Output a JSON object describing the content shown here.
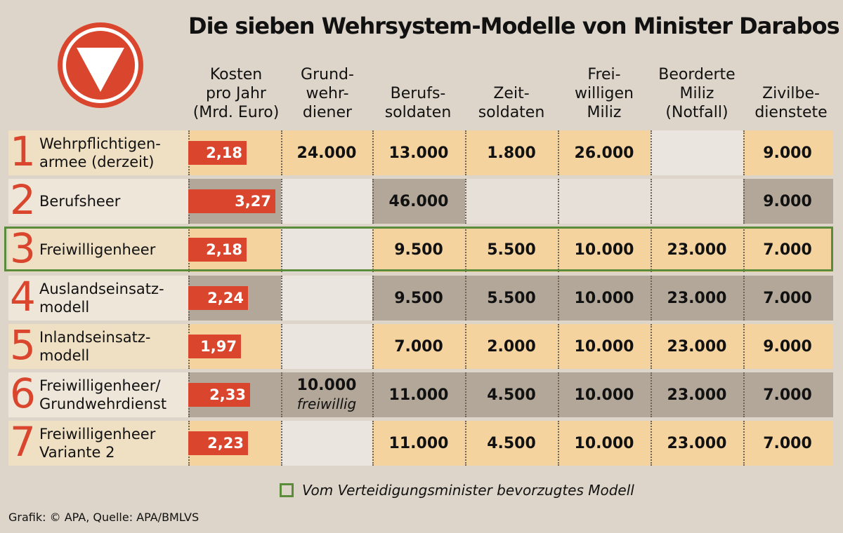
{
  "header": {
    "title": "Die sieben Wehrsystem-Modelle von Minister Darabos",
    "logo_icon": "austrian-army-triangle-logo"
  },
  "colors": {
    "accent_red": "#d9462d",
    "row_light": "#f4d39f",
    "row_dark": "#b2a799",
    "row_empty": "#eae5de",
    "highlight_green": "#5a8c3c"
  },
  "columns": [
    "Kosten\npro Jahr\n(Mrd. Euro)",
    "Grund-\nwehr-\ndiener",
    "Berufs-\nsoldaten",
    "Zeit-\nsoldaten",
    "Frei-\nwilligen\nMiliz",
    "Beorderte\nMiliz\n(Notfall)",
    "Zivilbe-\ndienstete"
  ],
  "rows": [
    {
      "number": "1",
      "name": "Wehrpflichtigen-\narmee (derzeit)",
      "cost_label": "2,18",
      "grund": "24.000",
      "grund_note": "",
      "berufs": "13.000",
      "zeit": "1.800",
      "freiwillige_miliz": "26.000",
      "beorderte_miliz": "",
      "zivil": "9.000"
    },
    {
      "number": "2",
      "name": "Berufsheer",
      "cost_label": "3,27",
      "grund": "",
      "grund_note": "",
      "berufs": "46.000",
      "zeit": "",
      "freiwillige_miliz": "",
      "beorderte_miliz": "",
      "zivil": "9.000"
    },
    {
      "number": "3",
      "name": "Freiwilligenheer",
      "cost_label": "2,18",
      "grund": "",
      "grund_note": "",
      "berufs": "9.500",
      "zeit": "5.500",
      "freiwillige_miliz": "10.000",
      "beorderte_miliz": "23.000",
      "zivil": "7.000"
    },
    {
      "number": "4",
      "name": "Auslandseinsatz-\nmodell",
      "cost_label": "2,24",
      "grund": "",
      "grund_note": "",
      "berufs": "9.500",
      "zeit": "5.500",
      "freiwillige_miliz": "10.000",
      "beorderte_miliz": "23.000",
      "zivil": "7.000"
    },
    {
      "number": "5",
      "name": "Inlandseinsatz-\nmodell",
      "cost_label": "1,97",
      "grund": "",
      "grund_note": "",
      "berufs": "7.000",
      "zeit": "2.000",
      "freiwillige_miliz": "10.000",
      "beorderte_miliz": "23.000",
      "zivil": "9.000"
    },
    {
      "number": "6",
      "name": "Freiwilligenheer/\nGrundwehrdienst",
      "cost_label": "2,33",
      "grund": "10.000",
      "grund_note": "freiwillig",
      "berufs": "11.000",
      "zeit": "4.500",
      "freiwillige_miliz": "10.000",
      "beorderte_miliz": "23.000",
      "zivil": "7.000"
    },
    {
      "number": "7",
      "name": "Freiwilligenheer\nVariante 2",
      "cost_label": "2,23",
      "grund": "",
      "grund_note": "",
      "berufs": "11.000",
      "zeit": "4.500",
      "freiwillige_miliz": "10.000",
      "beorderte_miliz": "23.000",
      "zivil": "7.000"
    }
  ],
  "highlighted_row": 3,
  "legend": {
    "text": "Vom Verteidigungsminister bevorzugtes Modell"
  },
  "source": "Grafik: © APA, Quelle: APA/BMLVS",
  "chart_data": {
    "type": "table",
    "title": "Die sieben Wehrsystem-Modelle von Minister Darabos",
    "categories": [
      "Wehrpflichtigen-armee (derzeit)",
      "Berufsheer",
      "Freiwilligenheer",
      "Auslandseinsatz-modell",
      "Inlandseinsatz-modell",
      "Freiwilligenheer/Grundwehrdienst",
      "Freiwilligenheer Variante 2"
    ],
    "series": [
      {
        "name": "Kosten pro Jahr (Mrd. Euro)",
        "values": [
          2.18,
          3.27,
          2.18,
          2.24,
          1.97,
          2.33,
          2.23
        ]
      },
      {
        "name": "Grundwehrdiener",
        "values": [
          24000,
          null,
          null,
          null,
          null,
          10000,
          null
        ]
      },
      {
        "name": "Berufssoldaten",
        "values": [
          13000,
          46000,
          9500,
          9500,
          7000,
          11000,
          11000
        ]
      },
      {
        "name": "Zeitsoldaten",
        "values": [
          1800,
          null,
          5500,
          5500,
          2000,
          4500,
          4500
        ]
      },
      {
        "name": "Freiwilligen Miliz",
        "values": [
          26000,
          null,
          10000,
          10000,
          10000,
          10000,
          10000
        ]
      },
      {
        "name": "Beorderte Miliz (Notfall)",
        "values": [
          null,
          null,
          23000,
          23000,
          23000,
          23000,
          23000
        ]
      },
      {
        "name": "Zivilbedienstete",
        "values": [
          9000,
          9000,
          7000,
          7000,
          9000,
          7000,
          7000
        ]
      }
    ]
  }
}
